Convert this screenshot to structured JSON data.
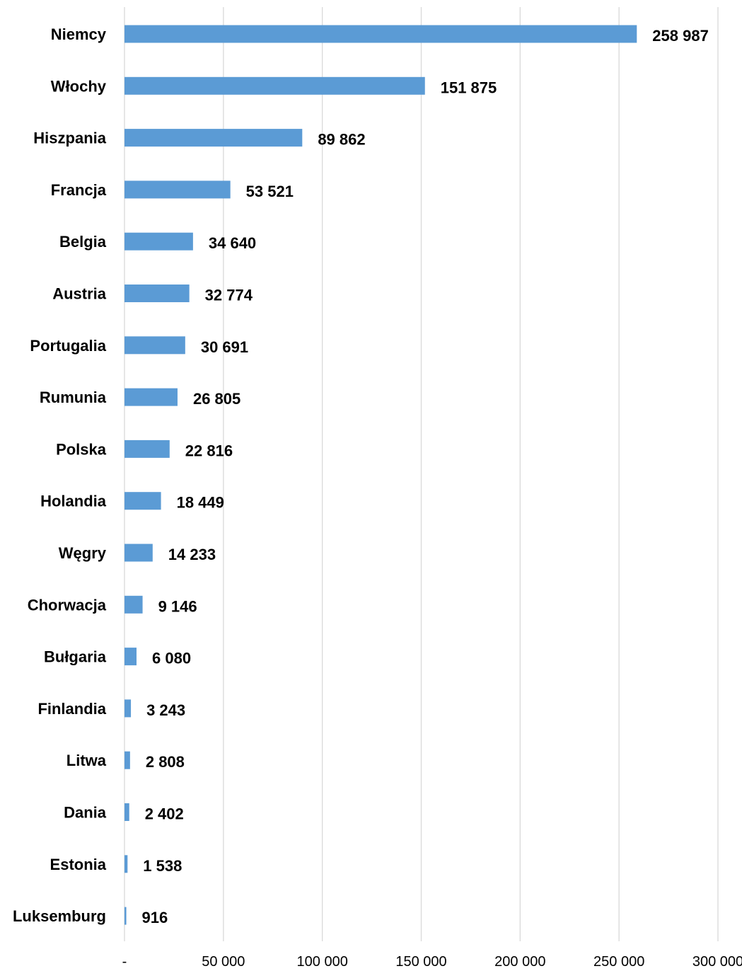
{
  "chart_data": {
    "type": "bar",
    "orientation": "horizontal",
    "title": "",
    "xlabel": "",
    "ylabel": "",
    "xlim": [
      0,
      300000
    ],
    "grid": true,
    "legend": "none",
    "bar_color": "#5b9bd5",
    "x_ticks": [
      {
        "value": 0,
        "label": "-"
      },
      {
        "value": 50000,
        "label": "50 000"
      },
      {
        "value": 100000,
        "label": "100 000"
      },
      {
        "value": 150000,
        "label": "150 000"
      },
      {
        "value": 200000,
        "label": "200 000"
      },
      {
        "value": 250000,
        "label": "250 000"
      },
      {
        "value": 300000,
        "label": "300 000"
      }
    ],
    "categories": [
      "Niemcy",
      "Włochy",
      "Hiszpania",
      "Francja",
      "Belgia",
      "Austria",
      "Portugalia",
      "Rumunia",
      "Polska",
      "Holandia",
      "Węgry",
      "Chorwacja",
      "Bułgaria",
      "Finlandia",
      "Litwa",
      "Dania",
      "Estonia",
      "Luksemburg"
    ],
    "values": [
      258987,
      151875,
      89862,
      53521,
      34640,
      32774,
      30691,
      26805,
      22816,
      18449,
      14233,
      9146,
      6080,
      3243,
      2808,
      2402,
      1538,
      916
    ],
    "data_labels": [
      "258 987",
      "151 875",
      "89 862",
      "53 521",
      "34 640",
      "32 774",
      "30 691",
      "26 805",
      "22 816",
      "18 449",
      "14 233",
      "9 146",
      "6 080",
      "3 243",
      "2 808",
      "2 402",
      "1 538",
      "916"
    ]
  }
}
